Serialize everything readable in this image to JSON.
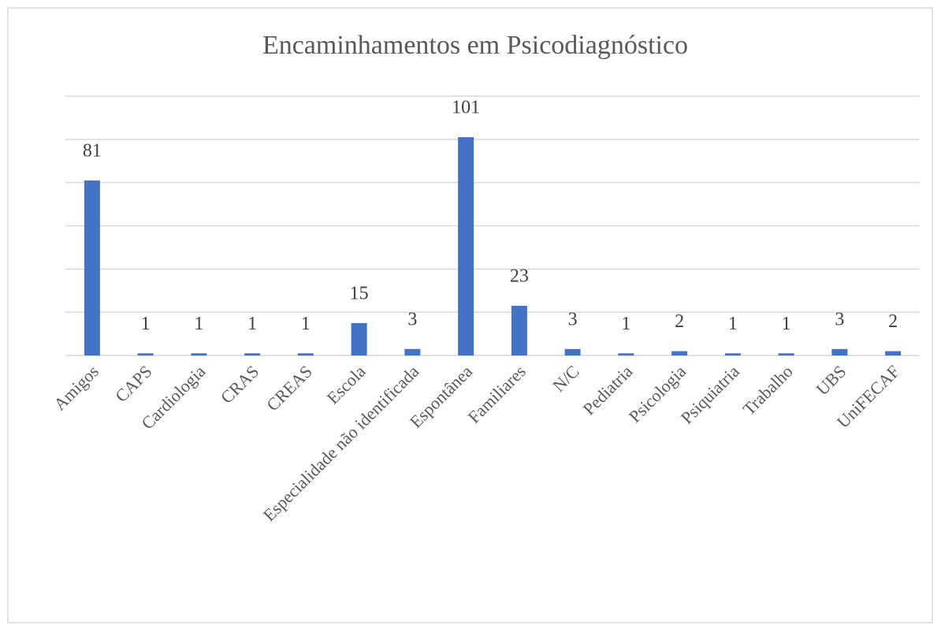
{
  "chart_data": {
    "type": "bar",
    "title": "Encaminhamentos em Psicodiagnóstico",
    "categories": [
      "Amigos",
      "CAPS",
      "Cardiologia",
      "CRAS",
      "CREAS",
      "Escola",
      "Especialidade não identificada",
      "Espontânea",
      "Familiares",
      "N/C",
      "Pediatria",
      "Psicologia",
      "Psiquiatria",
      "Trabalho",
      "UBS",
      "UniFECAF"
    ],
    "values": [
      81,
      1,
      1,
      1,
      1,
      15,
      3,
      101,
      23,
      3,
      1,
      2,
      1,
      1,
      3,
      2
    ],
    "color": "#4472c4",
    "ylim": [
      0,
      120
    ],
    "yticks": [
      0,
      20,
      40,
      60,
      80,
      100,
      120
    ],
    "grid": true
  }
}
